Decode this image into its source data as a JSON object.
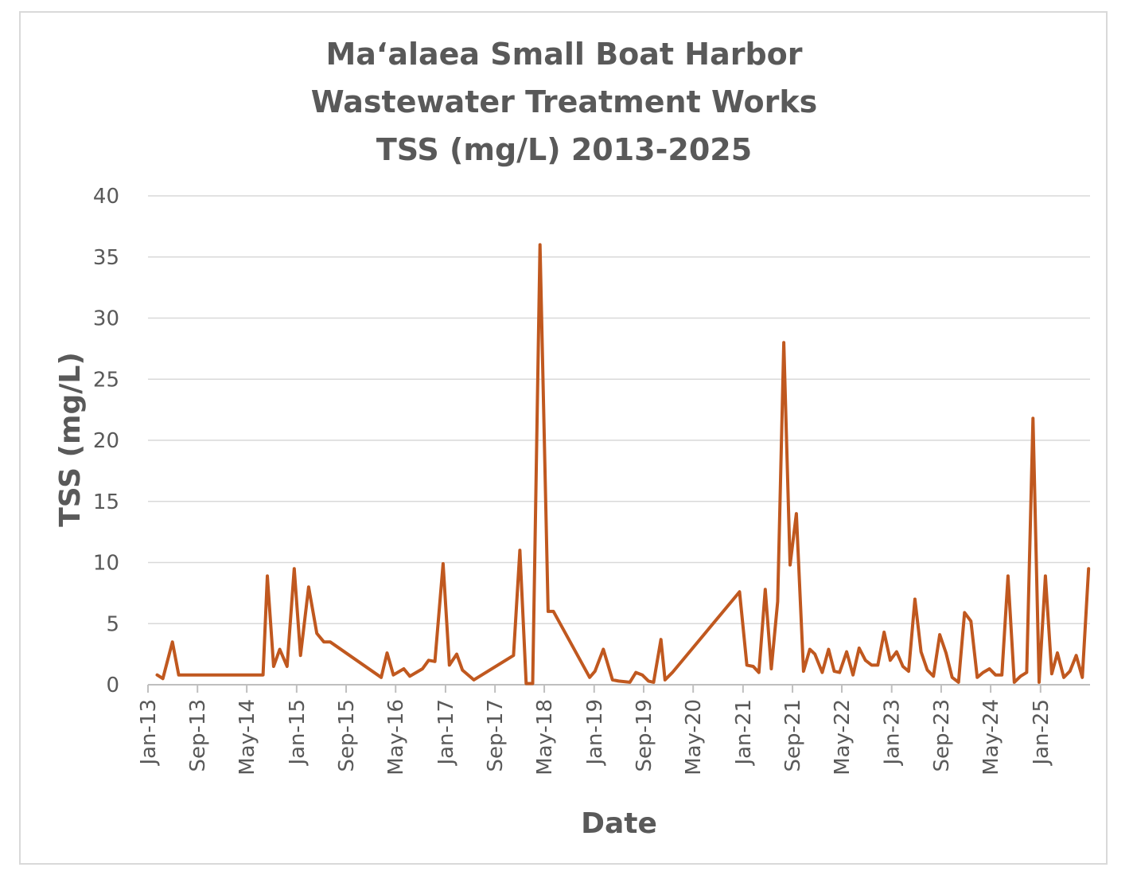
{
  "chart_data": {
    "type": "line",
    "title": [
      "Ma‘alaea Small Boat Harbor",
      "Wastewater Treatment Works",
      "TSS (mg/L) 2013-2025"
    ],
    "xlabel": "Date",
    "ylabel": "TSS (mg/L)",
    "ylim": [
      0,
      40
    ],
    "yticks": [
      0,
      5,
      10,
      15,
      20,
      25,
      30,
      35,
      40
    ],
    "xlim": [
      "2013-01-01",
      "2025-09-01"
    ],
    "xticks": [
      {
        "date": "2013-01-01",
        "label": "Jan-13"
      },
      {
        "date": "2013-09-01",
        "label": "Sep-13"
      },
      {
        "date": "2014-05-01",
        "label": "May-14"
      },
      {
        "date": "2015-01-01",
        "label": "Jan-15"
      },
      {
        "date": "2015-09-01",
        "label": "Sep-15"
      },
      {
        "date": "2016-05-01",
        "label": "May-16"
      },
      {
        "date": "2017-01-01",
        "label": "Jan-17"
      },
      {
        "date": "2017-09-01",
        "label": "Sep-17"
      },
      {
        "date": "2018-05-01",
        "label": "May-18"
      },
      {
        "date": "2019-01-01",
        "label": "Jan-19"
      },
      {
        "date": "2019-09-01",
        "label": "Sep-19"
      },
      {
        "date": "2020-05-01",
        "label": "May-20"
      },
      {
        "date": "2021-01-01",
        "label": "Jan-21"
      },
      {
        "date": "2021-09-01",
        "label": "Sep-21"
      },
      {
        "date": "2022-05-01",
        "label": "May-22"
      },
      {
        "date": "2023-01-01",
        "label": "Jan-23"
      },
      {
        "date": "2023-09-01",
        "label": "Sep-23"
      },
      {
        "date": "2024-05-01",
        "label": "May-24"
      },
      {
        "date": "2025-01-01",
        "label": "Jan-25"
      }
    ],
    "grid": true,
    "series_color": "#c0581f",
    "x": [
      "2013-02-15",
      "2013-03-15",
      "2013-05-01",
      "2013-06-01",
      "2014-07-20",
      "2014-08-10",
      "2014-09-10",
      "2014-10-10",
      "2014-11-15",
      "2014-12-20",
      "2015-01-20",
      "2015-03-01",
      "2015-04-10",
      "2015-05-15",
      "2015-06-15",
      "2016-02-20",
      "2016-03-20",
      "2016-04-20",
      "2016-06-10",
      "2016-07-10",
      "2016-08-10",
      "2016-09-10",
      "2016-10-10",
      "2016-11-10",
      "2016-12-20",
      "2017-01-20",
      "2017-02-25",
      "2017-03-25",
      "2017-05-20",
      "2017-12-01",
      "2018-01-01",
      "2018-02-01",
      "2018-03-05",
      "2018-04-10",
      "2018-05-20",
      "2018-06-15",
      "2018-12-10",
      "2019-01-05",
      "2019-02-15",
      "2019-04-01",
      "2019-05-01",
      "2019-06-25",
      "2019-07-25",
      "2019-08-25",
      "2019-09-25",
      "2019-10-20",
      "2019-11-25",
      "2019-12-15",
      "2020-01-20",
      "2020-12-15",
      "2021-01-20",
      "2021-02-20",
      "2021-03-20",
      "2021-04-20",
      "2021-05-20",
      "2021-06-20",
      "2021-07-20",
      "2021-08-20",
      "2021-09-20",
      "2021-10-25",
      "2021-11-25",
      "2021-12-20",
      "2022-01-25",
      "2022-02-25",
      "2022-03-25",
      "2022-04-20",
      "2022-05-25",
      "2022-06-25",
      "2022-07-25",
      "2022-08-25",
      "2022-09-25",
      "2022-10-25",
      "2022-11-25",
      "2022-12-25",
      "2023-01-25",
      "2023-02-25",
      "2023-03-25",
      "2023-04-25",
      "2023-05-25",
      "2023-06-25",
      "2023-07-25",
      "2023-08-25",
      "2023-09-25",
      "2023-10-25",
      "2023-11-25",
      "2023-12-25",
      "2024-01-25",
      "2024-02-25",
      "2024-03-25",
      "2024-04-25",
      "2024-05-25",
      "2024-06-25",
      "2024-07-25",
      "2024-08-25",
      "2024-09-25",
      "2024-10-25",
      "2024-11-25",
      "2024-12-25",
      "2025-01-25",
      "2025-02-25",
      "2025-03-25",
      "2025-04-25",
      "2025-05-25",
      "2025-06-25",
      "2025-07-25",
      "2025-08-25"
    ],
    "series": [
      {
        "values": [
          0.8,
          0.5,
          3.5,
          0.8,
          0.8,
          8.9,
          1.5,
          2.9,
          1.5,
          9.5,
          2.4,
          8.0,
          4.2,
          3.5,
          3.5,
          0.6,
          2.6,
          0.8,
          1.3,
          0.7,
          1.0,
          1.3,
          2.0,
          1.9,
          9.9,
          1.6,
          2.5,
          1.2,
          0.4,
          2.4,
          11.0,
          0.1,
          0.1,
          36.0,
          6.0,
          6.0,
          0.6,
          1.1,
          2.9,
          0.4,
          0.3,
          0.2,
          1.0,
          0.8,
          0.3,
          0.2,
          3.7,
          0.4,
          1.0,
          7.6,
          1.6,
          1.5,
          1.0,
          7.8,
          1.3,
          6.8,
          28.0,
          9.8,
          14.0,
          1.1,
          2.9,
          2.5,
          1.0,
          2.9,
          1.1,
          1.0,
          2.7,
          0.8,
          3.0,
          2.0,
          1.6,
          1.6,
          4.3,
          2.0,
          2.7,
          1.5,
          1.1,
          7.0,
          2.7,
          1.2,
          0.7,
          4.1,
          2.6,
          0.6,
          0.2,
          5.9,
          5.2,
          0.6,
          1.0,
          1.3,
          0.8,
          0.8,
          8.9,
          0.2,
          0.7,
          1.0,
          21.8,
          0.2,
          8.9,
          0.9,
          2.6,
          0.6,
          1.1,
          2.4,
          0.6,
          9.5
        ]
      }
    ]
  }
}
